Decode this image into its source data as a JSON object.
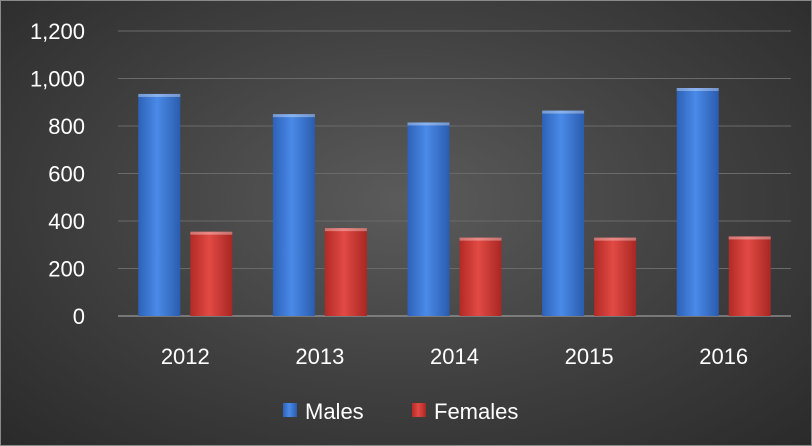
{
  "chart_data": {
    "type": "bar",
    "categories": [
      "2012",
      "2013",
      "2014",
      "2015",
      "2016"
    ],
    "series": [
      {
        "name": "Males",
        "values": [
          935,
          850,
          815,
          865,
          960
        ],
        "color": "#3b7ad6"
      },
      {
        "name": "Females",
        "values": [
          355,
          370,
          330,
          330,
          335
        ],
        "color": "#d63a35"
      }
    ],
    "y_ticks": [
      "0",
      "200",
      "400",
      "600",
      "800",
      "1,000",
      "1,200"
    ],
    "ylim": [
      0,
      1200
    ],
    "grid": true,
    "legend": "bottom",
    "title": "",
    "xlabel": "",
    "ylabel": ""
  }
}
